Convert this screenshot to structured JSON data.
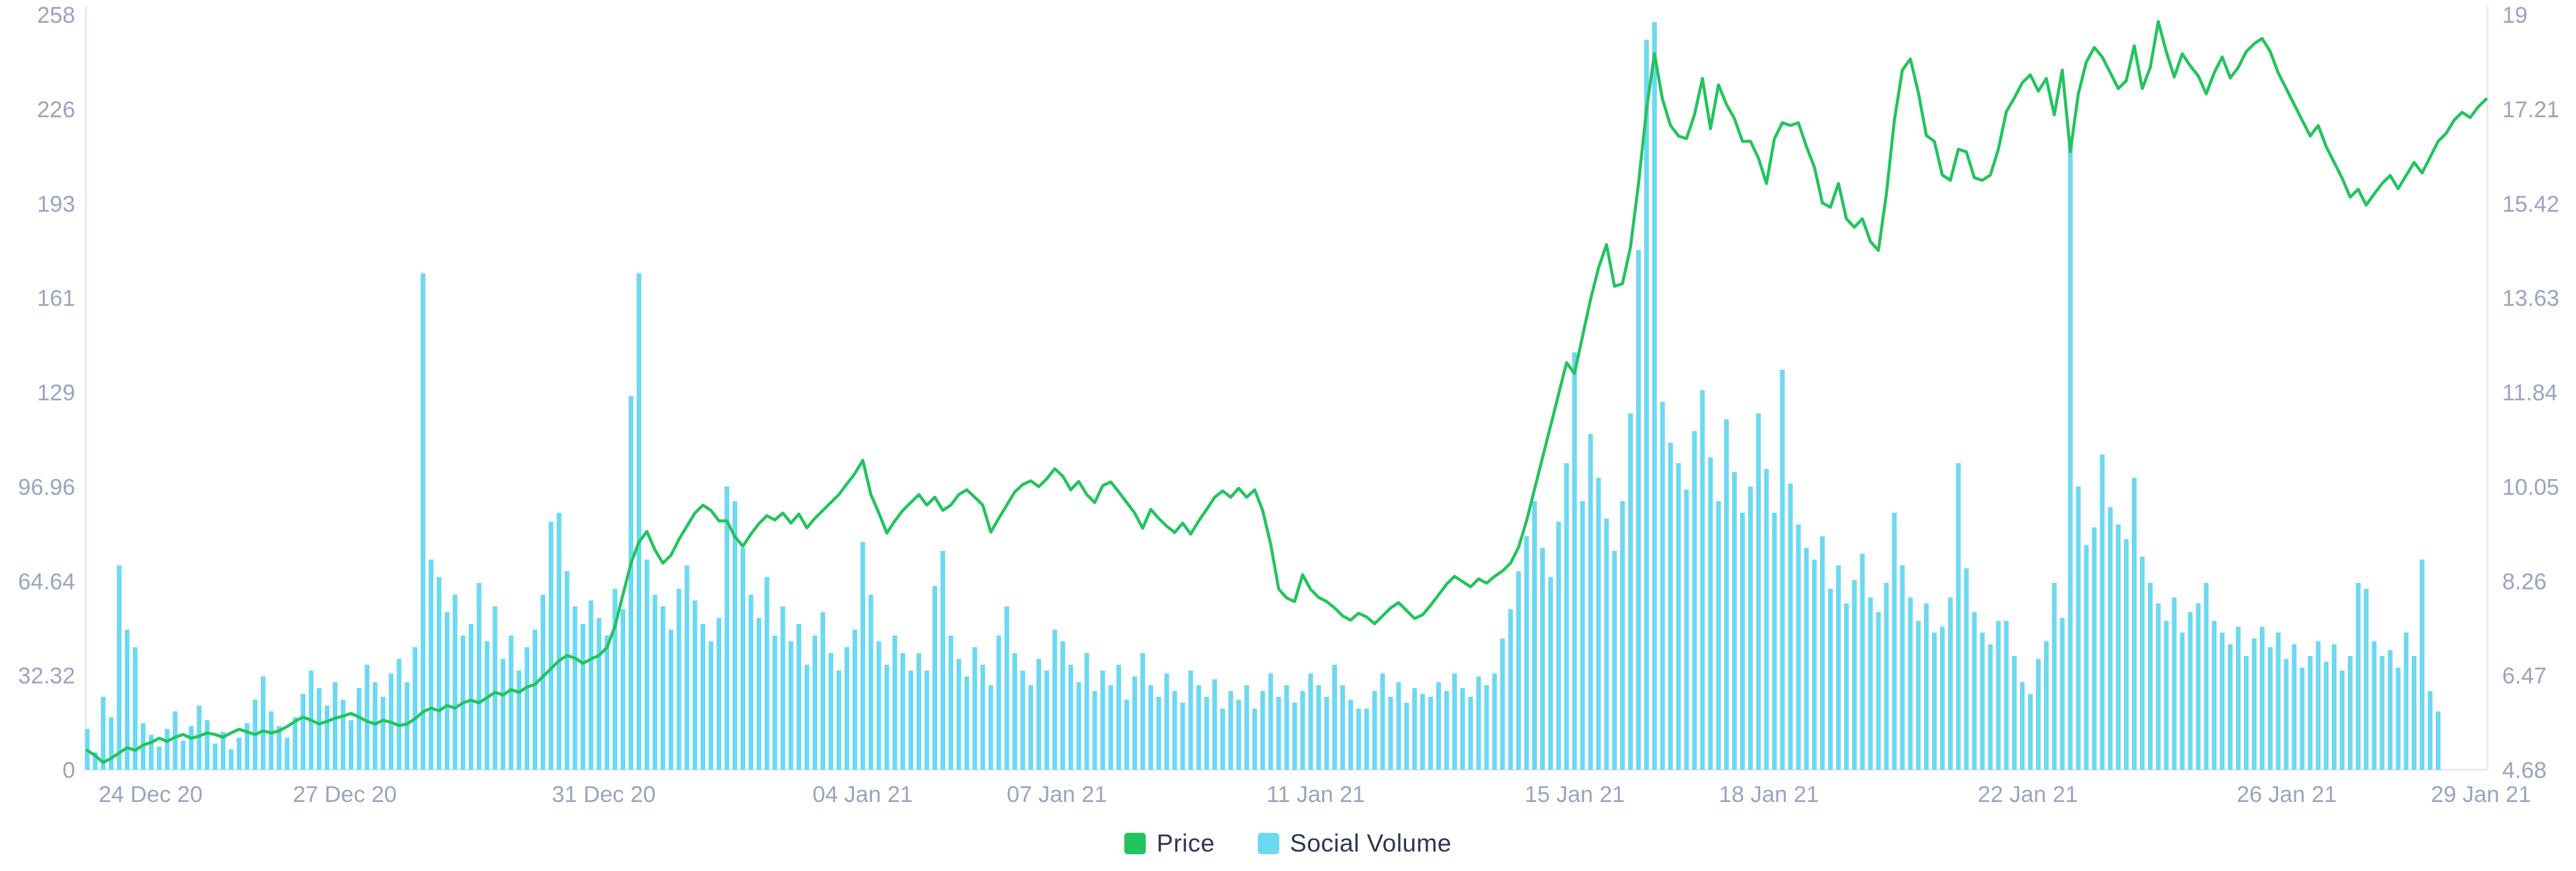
{
  "colors": {
    "price_line": "#21C45D",
    "volume_bar": "#6CD9F3",
    "tick_text": "#9BA4BF",
    "axis_line": "#E4E9F4",
    "legend_text": "#2E3650",
    "background": "#FFFFFF"
  },
  "legend": {
    "items": [
      {
        "label": "Price",
        "color": "#21C45D"
      },
      {
        "label": "Social Volume",
        "color": "#6CD9F3"
      }
    ]
  },
  "chart_data": {
    "type": "bar",
    "subtype": "dual-axis combo (line + bar)",
    "title": "",
    "xlabel": "",
    "ylabel_left": "",
    "ylabel_right": "",
    "grid": "off",
    "legend_position": "bottom-center",
    "x_start": "23 Dec 20",
    "x_end": "29 Jan 21",
    "points_per_day": 8,
    "x_ticks": {
      "labels": [
        "24 Dec 20",
        "27 Dec 20",
        "31 Dec 20",
        "04 Jan 21",
        "07 Jan 21",
        "11 Jan 21",
        "15 Jan 21",
        "18 Jan 21",
        "22 Jan 21",
        "26 Jan 21",
        "29 Jan 21"
      ],
      "day_offsets": [
        1,
        4,
        8,
        12,
        15,
        19,
        23,
        26,
        30,
        34,
        37
      ],
      "total_days": 37.1
    },
    "left_axis": {
      "ticks": [
        "0",
        "32.32",
        "64.64",
        "96.96",
        "129",
        "161",
        "193",
        "226",
        "258"
      ],
      "range": [
        0,
        258.56
      ],
      "series": "Social Volume"
    },
    "right_axis": {
      "ticks": [
        "4.68",
        "6.47",
        "8.26",
        "10.05",
        "11.84",
        "13.63",
        "15.42",
        "17.21",
        "19"
      ],
      "range": [
        4.68,
        19
      ],
      "series": "Price"
    },
    "series": [
      {
        "name": "Price",
        "type": "line",
        "axis": "right",
        "color": "#21C45D",
        "values": [
          5.05,
          4.95,
          4.82,
          4.9,
          5.0,
          5.1,
          5.05,
          5.15,
          5.2,
          5.28,
          5.22,
          5.3,
          5.35,
          5.28,
          5.32,
          5.38,
          5.35,
          5.3,
          5.38,
          5.45,
          5.4,
          5.35,
          5.42,
          5.38,
          5.42,
          5.5,
          5.6,
          5.68,
          5.62,
          5.55,
          5.6,
          5.66,
          5.7,
          5.75,
          5.68,
          5.6,
          5.55,
          5.62,
          5.58,
          5.52,
          5.55,
          5.65,
          5.78,
          5.85,
          5.8,
          5.9,
          5.85,
          5.95,
          6.0,
          5.95,
          6.05,
          6.15,
          6.1,
          6.2,
          6.15,
          6.25,
          6.3,
          6.45,
          6.6,
          6.75,
          6.85,
          6.8,
          6.7,
          6.78,
          6.85,
          7.0,
          7.4,
          8.0,
          8.6,
          9.0,
          9.2,
          8.85,
          8.6,
          8.75,
          9.05,
          9.3,
          9.55,
          9.7,
          9.6,
          9.4,
          9.4,
          9.1,
          8.92,
          9.15,
          9.35,
          9.5,
          9.42,
          9.55,
          9.36,
          9.53,
          9.27,
          9.45,
          9.6,
          9.75,
          9.9,
          10.1,
          10.3,
          10.55,
          9.9,
          9.55,
          9.17,
          9.4,
          9.6,
          9.75,
          9.9,
          9.7,
          9.85,
          9.6,
          9.7,
          9.9,
          9.99,
          9.85,
          9.7,
          9.19,
          9.45,
          9.7,
          9.95,
          10.09,
          10.16,
          10.05,
          10.2,
          10.39,
          10.25,
          9.99,
          10.15,
          9.9,
          9.75,
          10.07,
          10.14,
          9.95,
          9.75,
          9.55,
          9.26,
          9.62,
          9.45,
          9.3,
          9.18,
          9.36,
          9.15,
          9.4,
          9.62,
          9.85,
          9.97,
          9.85,
          10.02,
          9.85,
          9.99,
          9.6,
          8.96,
          8.11,
          7.94,
          7.87,
          8.38,
          8.1,
          7.95,
          7.87,
          7.75,
          7.6,
          7.52,
          7.65,
          7.58,
          7.45,
          7.6,
          7.75,
          7.85,
          7.7,
          7.55,
          7.62,
          7.8,
          8.0,
          8.2,
          8.35,
          8.25,
          8.15,
          8.3,
          8.22,
          8.35,
          8.45,
          8.6,
          8.9,
          9.4,
          10.0,
          10.6,
          11.2,
          11.8,
          12.4,
          12.2,
          12.9,
          13.6,
          14.2,
          14.64,
          13.85,
          13.9,
          14.6,
          15.8,
          17.2,
          18.26,
          17.4,
          16.9,
          16.7,
          16.65,
          17.1,
          17.79,
          16.84,
          17.67,
          17.3,
          17.03,
          16.6,
          16.6,
          16.28,
          15.8,
          16.65,
          16.95,
          16.9,
          16.95,
          16.5,
          16.11,
          15.43,
          15.35,
          15.8,
          15.13,
          14.97,
          15.13,
          14.7,
          14.53,
          15.6,
          17.0,
          17.95,
          18.16,
          17.52,
          16.71,
          16.6,
          15.96,
          15.86,
          16.45,
          16.4,
          15.91,
          15.86,
          15.96,
          16.45,
          17.16,
          17.42,
          17.71,
          17.86,
          17.55,
          17.79,
          17.1,
          17.95,
          16.4,
          17.5,
          18.1,
          18.38,
          18.2,
          17.9,
          17.6,
          17.75,
          18.41,
          17.6,
          18.0,
          18.87,
          18.3,
          17.82,
          18.26,
          18.03,
          17.84,
          17.5,
          17.9,
          18.2,
          17.8,
          18.0,
          18.3,
          18.45,
          18.55,
          18.3,
          17.9,
          17.6,
          17.3,
          17.0,
          16.7,
          16.9,
          16.5,
          16.2,
          15.9,
          15.54,
          15.69,
          15.39,
          15.6,
          15.8,
          15.95,
          15.7,
          15.95,
          16.2,
          16.0,
          16.3,
          16.6,
          16.75,
          17.0,
          17.15,
          17.05,
          17.25,
          17.4
        ]
      },
      {
        "name": "Social Volume",
        "type": "bar",
        "axis": "left",
        "color": "#6CD9F3",
        "values": [
          14,
          6,
          25,
          18,
          70,
          48,
          42,
          16,
          12,
          8,
          14,
          20,
          10,
          15,
          22,
          17,
          9,
          13,
          7,
          11,
          16,
          24,
          32,
          20,
          15,
          11,
          18,
          26,
          34,
          28,
          22,
          30,
          24,
          17,
          28,
          36,
          30,
          25,
          33,
          38,
          30,
          42,
          170,
          72,
          66,
          54,
          60,
          46,
          50,
          64,
          44,
          56,
          38,
          46,
          34,
          42,
          48,
          60,
          85,
          88,
          68,
          56,
          50,
          58,
          52,
          46,
          62,
          55,
          128,
          170,
          72,
          60,
          56,
          48,
          62,
          70,
          58,
          50,
          44,
          52,
          97,
          92,
          76,
          60,
          52,
          66,
          46,
          56,
          44,
          50,
          36,
          46,
          54,
          40,
          34,
          42,
          48,
          78,
          60,
          44,
          36,
          46,
          40,
          34,
          40,
          34,
          63,
          75,
          46,
          38,
          32,
          42,
          36,
          29,
          46,
          56,
          40,
          34,
          29,
          38,
          34,
          48,
          44,
          36,
          30,
          40,
          27,
          34,
          29,
          36,
          24,
          32,
          40,
          29,
          25,
          33,
          27,
          23,
          34,
          29,
          25,
          31,
          21,
          27,
          24,
          29,
          21,
          27,
          33,
          25,
          29,
          23,
          27,
          33,
          29,
          25,
          36,
          29,
          24,
          21,
          21,
          27,
          33,
          25,
          30,
          23,
          28,
          26,
          25,
          30,
          27,
          33,
          28,
          25,
          32,
          29,
          33,
          45,
          55,
          68,
          80,
          92,
          76,
          66,
          85,
          105,
          143,
          92,
          115,
          100,
          86,
          75,
          92,
          122,
          178,
          250,
          256,
          126,
          112,
          105,
          96,
          116,
          130,
          107,
          92,
          120,
          102,
          88,
          97,
          122,
          103,
          88,
          137,
          98,
          84,
          76,
          72,
          80,
          62,
          70,
          57,
          65,
          74,
          59,
          54,
          64,
          88,
          70,
          59,
          51,
          57,
          47,
          49,
          59,
          105,
          69,
          54,
          47,
          43,
          51,
          51,
          39,
          30,
          26,
          38,
          44,
          64,
          52,
          217,
          97,
          77,
          83,
          108,
          90,
          84,
          79,
          100,
          73,
          64,
          57,
          51,
          59,
          47,
          54,
          57,
          64,
          51,
          47,
          43,
          49,
          39,
          45,
          49,
          42,
          47,
          38,
          43,
          35,
          39,
          44,
          37,
          43,
          34,
          39,
          64,
          62,
          44,
          39,
          41,
          35,
          47,
          39,
          72,
          27,
          20
        ]
      }
    ]
  }
}
